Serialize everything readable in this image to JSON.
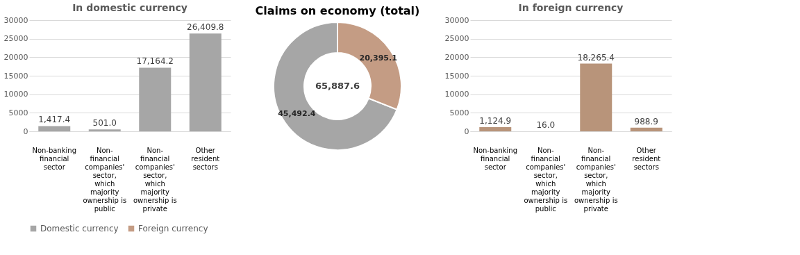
{
  "chart_data": [
    {
      "type": "bar",
      "title": "In domestic currency",
      "categories": [
        "Non-banking financial sector",
        "Non-financial companies' sector, which majority ownership is public",
        "Non-financial companies' sector, which majority ownership is private",
        "Other resident sectors"
      ],
      "values": [
        1417.4,
        501.0,
        17164.2,
        26409.8
      ],
      "value_labels": [
        "1,417.4",
        "501.0",
        "17,164.2",
        "26,409.8"
      ],
      "color": "#a6a6a6",
      "ylim": [
        0,
        30000
      ],
      "yticks": [
        0,
        5000,
        10000,
        15000,
        20000,
        25000,
        30000
      ],
      "grid": "y"
    },
    {
      "type": "donut",
      "title": "Claims on economy (total)",
      "categories": [
        "Domestic currency",
        "Foreign currency"
      ],
      "values": [
        45492.4,
        20395.1
      ],
      "colors": [
        "#a6a6a6",
        "#c49c84"
      ],
      "value_labels": [
        "45,492.4",
        "20,395.1"
      ],
      "annotations": [
        "65,887.6"
      ],
      "legend": "bottom"
    },
    {
      "type": "bar",
      "title": "In foreign currency",
      "categories": [
        "Non-banking financial sector",
        "Non-financial companies' sector, which majority ownership is public",
        "Non-financial companies' sector, which majority ownership is private",
        "Other resident sectors"
      ],
      "values": [
        1124.9,
        16.0,
        18265.4,
        988.9
      ],
      "value_labels": [
        "1,124.9",
        "16.0",
        "18,265.4",
        "988.9"
      ],
      "color": "#b8947a",
      "ylim": [
        0,
        30000
      ],
      "yticks": [
        0,
        5000,
        10000,
        15000,
        20000,
        25000,
        30000
      ],
      "grid": "y"
    }
  ]
}
